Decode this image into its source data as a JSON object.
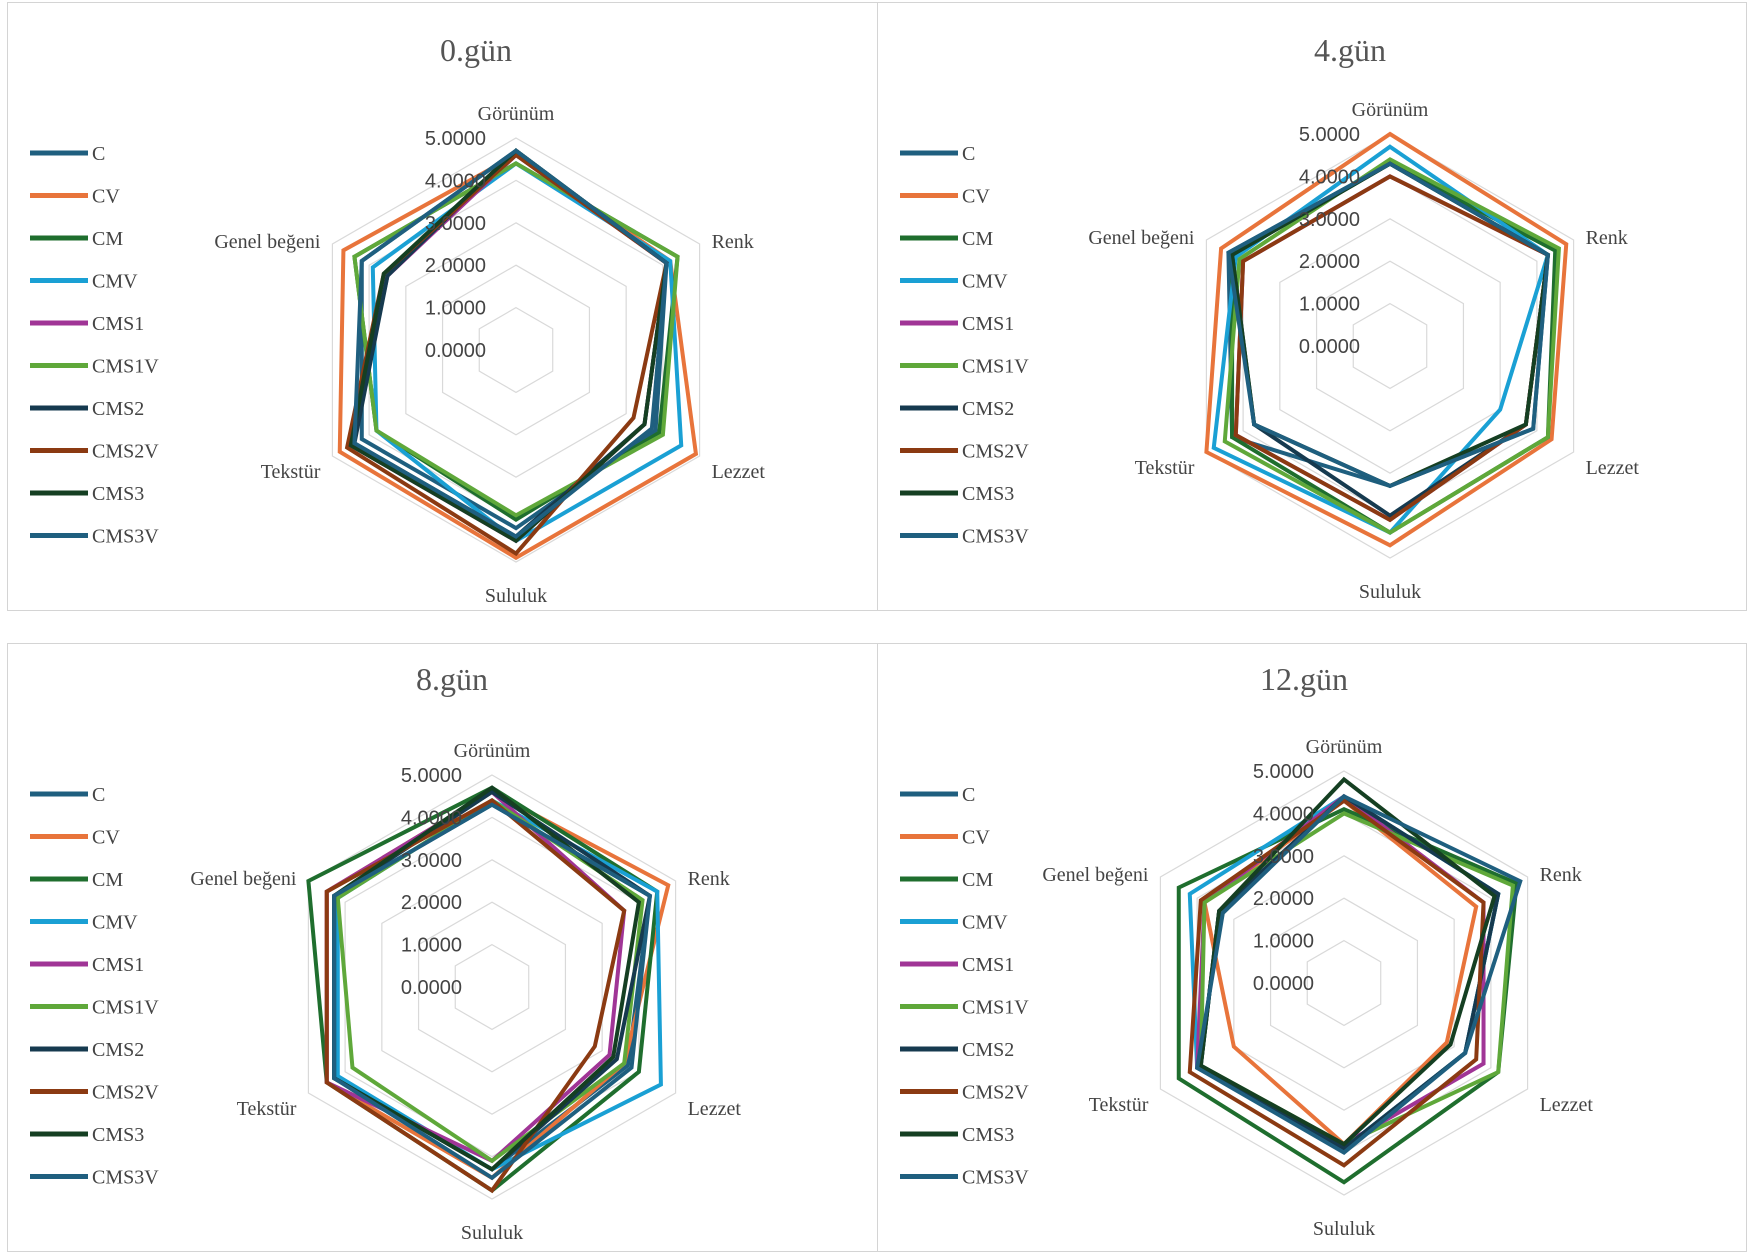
{
  "chart_data": [
    {
      "type": "radar",
      "title": "0.gün",
      "axes": [
        "Görünüm",
        "Renk",
        "Lezzet",
        "Sululuk",
        "Tekstür",
        "Genel beğeni"
      ],
      "ticks": [
        "0.0000",
        "1.0000",
        "2.0000",
        "3.0000",
        "4.0000",
        "5.0000"
      ],
      "rlim": [
        0,
        5
      ],
      "legend_position": "left",
      "grid": true,
      "series": [
        {
          "name": "C",
          "color": "#1f5f7f",
          "values": [
            4.7,
            4.1,
            3.8,
            4.2,
            4.2,
            4.2
          ]
        },
        {
          "name": "CV",
          "color": "#e8743b",
          "values": [
            4.6,
            4.2,
            4.9,
            4.9,
            4.8,
            4.7
          ]
        },
        {
          "name": "CM",
          "color": "#1f6e2e",
          "values": [
            4.4,
            4.4,
            3.9,
            4.0,
            3.8,
            4.4
          ]
        },
        {
          "name": "CMV",
          "color": "#1aa0d4",
          "values": [
            4.4,
            4.2,
            4.5,
            4.5,
            3.8,
            3.9
          ]
        },
        {
          "name": "CMS1",
          "color": "#a03596",
          "values": [
            4.6,
            4.1,
            3.5,
            4.5,
            4.5,
            3.5
          ]
        },
        {
          "name": "CMS1V",
          "color": "#5fa83a",
          "values": [
            4.4,
            4.4,
            4.0,
            3.9,
            3.8,
            4.4
          ]
        },
        {
          "name": "CMS2",
          "color": "#163a4f",
          "values": [
            4.7,
            4.1,
            3.5,
            4.4,
            4.4,
            3.5
          ]
        },
        {
          "name": "CMS2V",
          "color": "#8b3a12",
          "values": [
            4.6,
            4.1,
            3.2,
            4.8,
            4.6,
            3.6
          ]
        },
        {
          "name": "CMS3",
          "color": "#153f22",
          "values": [
            4.7,
            4.1,
            3.5,
            4.5,
            4.5,
            3.6
          ]
        },
        {
          "name": "CMS3V",
          "color": "#1f5f7f",
          "values": [
            4.7,
            4.1,
            3.7,
            4.4,
            4.4,
            4.2
          ]
        }
      ]
    },
    {
      "type": "radar",
      "title": "4.gün",
      "axes": [
        "Görünüm",
        "Renk",
        "Lezzet",
        "Sululuk",
        "Tekstür",
        "Genel beğeni"
      ],
      "ticks": [
        "0.0000",
        "1.0000",
        "2.0000",
        "3.0000",
        "4.0000",
        "5.0000"
      ],
      "rlim": [
        0,
        5
      ],
      "legend_position": "left",
      "grid": true,
      "series": [
        {
          "name": "C",
          "color": "#1f5f7f",
          "values": [
            4.3,
            4.3,
            3.9,
            3.3,
            4.3,
            4.4
          ]
        },
        {
          "name": "CV",
          "color": "#e8743b",
          "values": [
            5.0,
            4.8,
            4.4,
            4.7,
            5.0,
            4.6
          ]
        },
        {
          "name": "CM",
          "color": "#1f6e2e",
          "values": [
            4.3,
            4.5,
            4.3,
            4.4,
            4.3,
            4.3
          ]
        },
        {
          "name": "CMV",
          "color": "#1aa0d4",
          "values": [
            4.7,
            4.3,
            3.0,
            4.4,
            4.8,
            4.2
          ]
        },
        {
          "name": "CMS1",
          "color": "#a03596",
          "values": [
            4.0,
            4.3,
            3.7,
            4.1,
            4.2,
            4.0
          ]
        },
        {
          "name": "CMS1V",
          "color": "#5fa83a",
          "values": [
            4.4,
            4.6,
            4.3,
            4.4,
            4.5,
            4.1
          ]
        },
        {
          "name": "CMS2",
          "color": "#163a4f",
          "values": [
            4.3,
            4.3,
            3.7,
            4.0,
            3.7,
            4.3
          ]
        },
        {
          "name": "CMS2V",
          "color": "#8b3a12",
          "values": [
            4.0,
            4.3,
            3.7,
            4.1,
            4.2,
            4.0
          ]
        },
        {
          "name": "CMS3",
          "color": "#153f22",
          "values": [
            4.3,
            4.3,
            3.7,
            3.3,
            3.7,
            4.3
          ]
        },
        {
          "name": "CMS3V",
          "color": "#1f5f7f",
          "values": [
            4.3,
            4.3,
            3.9,
            3.3,
            3.7,
            4.4
          ]
        }
      ]
    },
    {
      "type": "radar",
      "title": "8.gün",
      "axes": [
        "Görünüm",
        "Renk",
        "Lezzet",
        "Sululuk",
        "Tekstür",
        "Genel beğeni"
      ],
      "ticks": [
        "0.0000",
        "1.0000",
        "2.0000",
        "3.0000",
        "4.0000",
        "5.0000"
      ],
      "rlim": [
        0,
        5
      ],
      "legend_position": "left",
      "grid": true,
      "series": [
        {
          "name": "C",
          "color": "#1f5f7f",
          "values": [
            4.3,
            4.3,
            3.7,
            4.3,
            4.3,
            4.3
          ]
        },
        {
          "name": "CV",
          "color": "#e8743b",
          "values": [
            4.6,
            4.8,
            3.6,
            4.5,
            4.5,
            4.5
          ]
        },
        {
          "name": "CM",
          "color": "#1f6e2e",
          "values": [
            4.7,
            4.5,
            4.0,
            4.8,
            4.5,
            5.0
          ]
        },
        {
          "name": "CMV",
          "color": "#1aa0d4",
          "values": [
            4.4,
            4.5,
            4.6,
            4.3,
            4.2,
            4.2
          ]
        },
        {
          "name": "CMS1",
          "color": "#a03596",
          "values": [
            4.6,
            3.6,
            3.2,
            4.1,
            4.5,
            4.5
          ]
        },
        {
          "name": "CMS1V",
          "color": "#5fa83a",
          "values": [
            4.4,
            4.1,
            3.6,
            4.1,
            3.8,
            4.2
          ]
        },
        {
          "name": "CMS2",
          "color": "#163a4f",
          "values": [
            4.6,
            4.3,
            3.4,
            4.3,
            4.3,
            4.3
          ]
        },
        {
          "name": "CMS2V",
          "color": "#8b3a12",
          "values": [
            4.4,
            3.6,
            2.8,
            4.8,
            4.5,
            4.5
          ]
        },
        {
          "name": "CMS3",
          "color": "#153f22",
          "values": [
            4.7,
            4.0,
            3.3,
            4.3,
            4.3,
            4.3
          ]
        },
        {
          "name": "CMS3V",
          "color": "#1f5f7f",
          "values": [
            4.3,
            4.3,
            3.8,
            4.5,
            4.3,
            4.3
          ]
        }
      ]
    },
    {
      "type": "radar",
      "title": "12.gün",
      "axes": [
        "Görünüm",
        "Renk",
        "Lezzet",
        "Sululuk",
        "Tekstür",
        "Genel beğeni"
      ],
      "ticks": [
        "0.0000",
        "1.0000",
        "2.0000",
        "3.0000",
        "4.0000",
        "5.0000"
      ],
      "rlim": [
        0,
        5
      ],
      "legend_position": "left",
      "grid": true,
      "series": [
        {
          "name": "C",
          "color": "#1f5f7f",
          "values": [
            4.4,
            4.2,
            3.3,
            3.9,
            3.9,
            3.4
          ]
        },
        {
          "name": "CV",
          "color": "#e8743b",
          "values": [
            4.3,
            3.6,
            2.8,
            3.8,
            3.0,
            3.8
          ]
        },
        {
          "name": "CM",
          "color": "#1f6e2e",
          "values": [
            4.1,
            4.7,
            4.2,
            4.7,
            4.5,
            4.5
          ]
        },
        {
          "name": "CMV",
          "color": "#1aa0d4",
          "values": [
            4.4,
            4.2,
            3.3,
            3.9,
            4.0,
            4.2
          ]
        },
        {
          "name": "CMS1",
          "color": "#a03596",
          "values": [
            4.4,
            3.8,
            3.8,
            3.8,
            4.0,
            3.8
          ]
        },
        {
          "name": "CMS1V",
          "color": "#5fa83a",
          "values": [
            4.0,
            4.6,
            4.2,
            3.8,
            3.9,
            3.8
          ]
        },
        {
          "name": "CMS2",
          "color": "#163a4f",
          "values": [
            4.4,
            4.2,
            3.3,
            3.9,
            3.9,
            3.4
          ]
        },
        {
          "name": "CMS2V",
          "color": "#8b3a12",
          "values": [
            4.3,
            3.8,
            3.6,
            4.3,
            4.2,
            3.9
          ]
        },
        {
          "name": "CMS3",
          "color": "#153f22",
          "values": [
            4.8,
            4.1,
            2.9,
            3.8,
            3.9,
            3.4
          ]
        },
        {
          "name": "CMS3V",
          "color": "#1f5f7f",
          "values": [
            4.4,
            4.8,
            3.3,
            4.0,
            4.0,
            3.3
          ]
        }
      ]
    }
  ]
}
